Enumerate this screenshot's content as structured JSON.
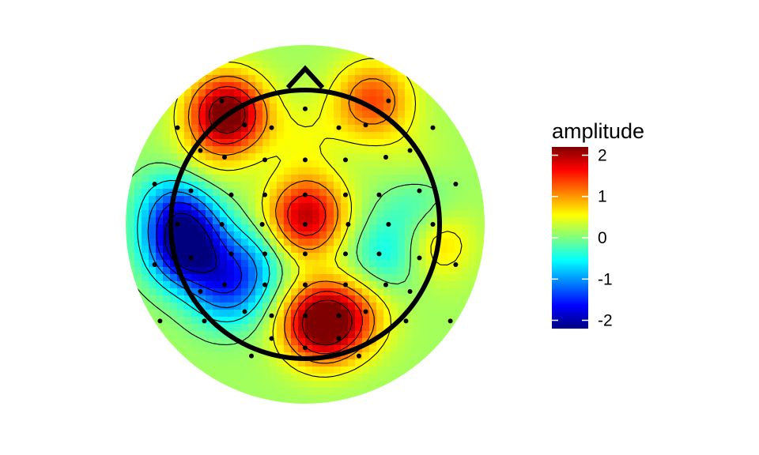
{
  "chart_data": {
    "type": "heatmap",
    "subtype": "eeg-topographic-map",
    "title": "",
    "legend": {
      "title": "amplitude",
      "placement": "right",
      "ticks": [
        2,
        1,
        0,
        -1,
        -2
      ],
      "tick_labels": [
        "2",
        "1",
        "0",
        "-1",
        "-2"
      ],
      "range": [
        -2.2,
        2.2
      ],
      "colormap": "jet"
    },
    "colors": {
      "jet_stops": [
        "#00007F",
        "#0000FF",
        "#007FFF",
        "#00FFFF",
        "#7FFF7F",
        "#FFFF00",
        "#FF7F00",
        "#FF0000",
        "#7F0000"
      ]
    },
    "features": {
      "head_outline": true,
      "nose": true,
      "contour_lines": true,
      "electrode_markers": true,
      "grid": false,
      "axes": false
    },
    "sources": [
      {
        "region": "frontal-left",
        "x": -0.58,
        "y": 0.82,
        "amplitude": 2.3
      },
      {
        "region": "frontal-right",
        "x": 0.5,
        "y": 0.92,
        "amplitude": 1.2
      },
      {
        "region": "frontal-midline",
        "x": 0.0,
        "y": 0.65,
        "amplitude": 0.3
      },
      {
        "region": "central-midline",
        "x": 0.02,
        "y": 0.08,
        "amplitude": 1.5
      },
      {
        "region": "central-midline-low",
        "x": -0.08,
        "y": -0.05,
        "amplitude": 0.4
      },
      {
        "region": "occipital-midline",
        "x": 0.12,
        "y": -0.74,
        "amplitude": 2.3
      },
      {
        "region": "occipital-right",
        "x": 0.38,
        "y": -0.68,
        "amplitude": 0.7
      },
      {
        "region": "temporal-left",
        "x": -0.88,
        "y": -0.18,
        "amplitude": -2.3
      },
      {
        "region": "temporal-left-upper",
        "x": -0.95,
        "y": 0.12,
        "amplitude": -1.3
      },
      {
        "region": "parietal-left",
        "x": -0.58,
        "y": -0.48,
        "amplitude": -1.3
      },
      {
        "region": "parietal-left-inner",
        "x": -0.38,
        "y": -0.25,
        "amplitude": -0.7
      },
      {
        "region": "temporal-right",
        "x": 0.62,
        "y": -0.22,
        "amplitude": -0.7
      },
      {
        "region": "temporal-right-outer",
        "x": 0.85,
        "y": 0.1,
        "amplitude": -0.6
      },
      {
        "region": "right-edge",
        "x": 0.95,
        "y": -0.12,
        "amplitude": 0.8
      },
      {
        "region": "left-lateral-upper",
        "x": -0.78,
        "y": 0.4,
        "amplitude": 0.3
      },
      {
        "region": "right-lateral-upper",
        "x": 0.82,
        "y": 0.45,
        "amplitude": 0.2
      }
    ],
    "electrodes": [
      [
        0.0,
        0.86
      ],
      [
        -0.45,
        0.74
      ],
      [
        0.45,
        0.74
      ],
      [
        -0.25,
        0.72
      ],
      [
        0.25,
        0.72
      ],
      [
        -0.78,
        0.55
      ],
      [
        0.78,
        0.55
      ],
      [
        -0.6,
        0.5
      ],
      [
        -0.3,
        0.48
      ],
      [
        0.0,
        0.48
      ],
      [
        0.3,
        0.48
      ],
      [
        0.6,
        0.5
      ],
      [
        -0.85,
        0.25
      ],
      [
        -0.55,
        0.22
      ],
      [
        -0.3,
        0.22
      ],
      [
        0.0,
        0.22
      ],
      [
        0.3,
        0.22
      ],
      [
        0.55,
        0.22
      ],
      [
        0.85,
        0.25
      ],
      [
        -0.95,
        0.0
      ],
      [
        -0.62,
        0.0
      ],
      [
        -0.32,
        0.0
      ],
      [
        0.0,
        0.0
      ],
      [
        0.32,
        0.0
      ],
      [
        0.62,
        0.0
      ],
      [
        0.95,
        0.0
      ],
      [
        -0.85,
        -0.25
      ],
      [
        -0.55,
        -0.22
      ],
      [
        -0.3,
        -0.22
      ],
      [
        0.0,
        -0.22
      ],
      [
        0.3,
        -0.22
      ],
      [
        0.55,
        -0.22
      ],
      [
        0.85,
        -0.25
      ],
      [
        -0.78,
        -0.5
      ],
      [
        -0.6,
        -0.45
      ],
      [
        -0.3,
        -0.45
      ],
      [
        0.0,
        -0.45
      ],
      [
        0.3,
        -0.45
      ],
      [
        0.6,
        -0.45
      ],
      [
        0.78,
        -0.5
      ],
      [
        -0.45,
        -0.65
      ],
      [
        -0.25,
        -0.68
      ],
      [
        0.0,
        -0.68
      ],
      [
        0.25,
        -0.68
      ],
      [
        0.45,
        -0.65
      ],
      [
        -0.75,
        -0.72
      ],
      [
        0.75,
        -0.72
      ],
      [
        -0.25,
        -0.85
      ],
      [
        0.0,
        -0.92
      ],
      [
        0.25,
        -0.85
      ],
      [
        -1.08,
        -0.72
      ],
      [
        1.08,
        -0.72
      ],
      [
        -0.95,
        0.72
      ],
      [
        0.95,
        0.72
      ],
      [
        -0.62,
        0.92
      ],
      [
        0.62,
        0.92
      ],
      [
        -0.4,
        -0.98
      ],
      [
        0.4,
        -0.98
      ],
      [
        -1.12,
        0.3
      ],
      [
        1.12,
        0.3
      ],
      [
        -1.12,
        -0.3
      ],
      [
        1.12,
        -0.3
      ]
    ]
  }
}
